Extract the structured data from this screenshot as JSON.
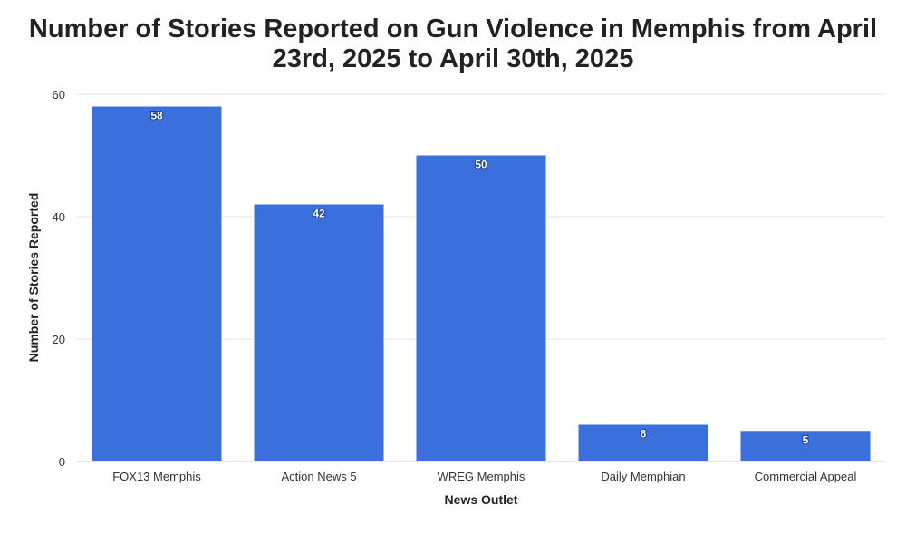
{
  "chart_data": {
    "type": "bar",
    "title_lines": [
      "Number of Stories Reported on Gun Violence in Memphis from April",
      "23rd, 2025 to April 30th, 2025"
    ],
    "xlabel": "News Outlet",
    "ylabel": "Number of Stories Reported",
    "categories": [
      "FOX13 Memphis",
      "Action News 5",
      "WREG Memphis",
      "Daily Memphian",
      "Commercial Appeal"
    ],
    "values": [
      58,
      42,
      50,
      6,
      5
    ],
    "ylim": [
      0,
      60
    ],
    "yticks": [
      0,
      20,
      40,
      60
    ],
    "grid": true,
    "legend": "none",
    "colors": {
      "bar": "#3b6fdb",
      "grid": "#e6e6e6",
      "axis": "#cccccc"
    }
  }
}
